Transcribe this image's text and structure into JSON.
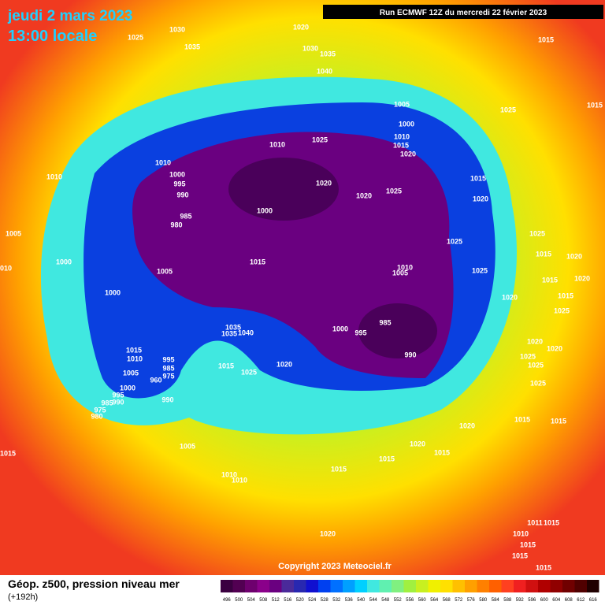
{
  "header": {
    "date": "jeudi 2 mars 2023",
    "time": "13:00 locale",
    "run": "Run ECMWF 12Z du mercredi 22 février 2023"
  },
  "isobar_labels": [
    "1025",
    "1030",
    "1035",
    "1020",
    "1030",
    "1035",
    "1040",
    "1015",
    "1015",
    "1005",
    "1000",
    "1025",
    "1010",
    "1015",
    "1020",
    "1010",
    "1025",
    "1010",
    "1000",
    "995",
    "990",
    "1010",
    "1020",
    "1020",
    "1025",
    "1015",
    "1020",
    "985",
    "980",
    "1000",
    "1005",
    "1025",
    "1025",
    "1015",
    "1020",
    "1020",
    "1000",
    "1015",
    "1010",
    "1005",
    "1025",
    "1015",
    "1015",
    "1005",
    "1000",
    "1020",
    "985",
    "1000",
    "995",
    "1035",
    "1035",
    "1040",
    "1025",
    "1020",
    "1020",
    "1015",
    "1010",
    "995",
    "985",
    "975",
    "1025",
    "1025",
    "990",
    "1020",
    "1015",
    "1025",
    "1005",
    "960",
    "1000",
    "995",
    "985",
    "990",
    "990",
    "1025",
    "975",
    "980",
    "1015",
    "1015",
    "1020",
    "1020",
    "1015",
    "1015",
    "1005",
    "1015",
    "1015",
    "1010",
    "1010",
    "1010",
    "1020",
    "1011",
    "1015",
    "1010",
    "1015",
    "1015",
    "1015"
  ],
  "copyright": "Copyright 2023 Meteociel.fr",
  "footer": {
    "title": "Géop. z500, pression niveau mer",
    "lead": "(+192h)"
  },
  "colorbar": {
    "labels": [
      "496",
      "500",
      "504",
      "508",
      "512",
      "516",
      "520",
      "524",
      "528",
      "532",
      "536",
      "540",
      "544",
      "548",
      "552",
      "556",
      "560",
      "564",
      "568",
      "572",
      "576",
      "580",
      "584",
      "588",
      "592",
      "596",
      "600",
      "604",
      "608",
      "612",
      "616"
    ],
    "colors": [
      "#3a0040",
      "#520052",
      "#6e006e",
      "#8a008a",
      "#6a0080",
      "#4a2a9a",
      "#2828b0",
      "#1010d0",
      "#0040f0",
      "#0070ff",
      "#00a0ff",
      "#00d0ff",
      "#40e8e0",
      "#60f0b0",
      "#80f080",
      "#a0f040",
      "#c8f020",
      "#f0f000",
      "#ffe000",
      "#ffc000",
      "#ffa000",
      "#ff8000",
      "#ff6000",
      "#ff4020",
      "#f02020",
      "#d01010",
      "#b00000",
      "#900000",
      "#700000",
      "#500000",
      "#200000"
    ]
  }
}
